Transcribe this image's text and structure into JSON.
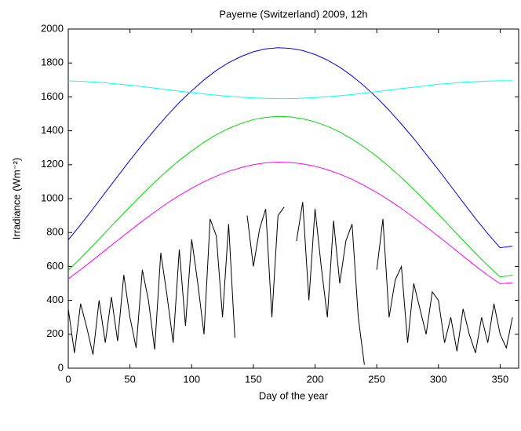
{
  "chart_data": {
    "type": "line",
    "title": "Payerne (Switzerland) 2009, 12h",
    "x_label": "Day of the year",
    "y_label": "Irradiance (Wm⁻²)",
    "xlim": [
      0,
      365
    ],
    "ylim": [
      0,
      2000
    ],
    "xticks": [
      0,
      50,
      100,
      150,
      200,
      250,
      300,
      350
    ],
    "yticks": [
      0,
      200,
      400,
      600,
      800,
      1000,
      1200,
      1400,
      1600,
      1800,
      2000
    ],
    "x": [
      0,
      10,
      20,
      30,
      40,
      50,
      60,
      70,
      80,
      90,
      100,
      110,
      120,
      130,
      140,
      150,
      160,
      170,
      180,
      190,
      200,
      210,
      220,
      230,
      240,
      250,
      260,
      270,
      280,
      290,
      300,
      310,
      320,
      330,
      340,
      350,
      360
    ],
    "series": [
      {
        "color": "#0000ff",
        "values": [
          757,
          846,
          940,
          1036,
          1131,
          1226,
          1318,
          1406,
          1489,
          1567,
          1636,
          1700,
          1756,
          1802,
          1838,
          1866,
          1883,
          1890,
          1886,
          1873,
          1850,
          1817,
          1775,
          1723,
          1663,
          1596,
          1521,
          1440,
          1354,
          1262,
          1170,
          1074,
          978,
          883,
          793,
          710,
          720
        ]
      },
      {
        "color": "#00ffff",
        "values": [
          1694,
          1692,
          1688,
          1683,
          1676,
          1669,
          1661,
          1652,
          1643,
          1634,
          1625,
          1617,
          1610,
          1603,
          1598,
          1594,
          1591,
          1590,
          1590,
          1592,
          1596,
          1601,
          1607,
          1614,
          1622,
          1631,
          1640,
          1649,
          1657,
          1666,
          1674,
          1680,
          1686,
          1690,
          1693,
          1695,
          1695
        ]
      },
      {
        "color": "#00dd00",
        "values": [
          577,
          648,
          724,
          800,
          877,
          952,
          1026,
          1097,
          1164,
          1226,
          1281,
          1333,
          1377,
          1414,
          1443,
          1466,
          1479,
          1485,
          1482,
          1471,
          1453,
          1427,
          1393,
          1351,
          1303,
          1249,
          1189,
          1124,
          1055,
          982,
          908,
          831,
          754,
          678,
          605,
          539,
          547
        ]
      },
      {
        "color": "#ff00ff",
        "values": [
          527,
          581,
          638,
          696,
          754,
          811,
          867,
          921,
          972,
          1019,
          1061,
          1100,
          1133,
          1161,
          1183,
          1200,
          1211,
          1215,
          1213,
          1205,
          1191,
          1171,
          1145,
          1114,
          1077,
          1036,
          991,
          942,
          889,
          834,
          778,
          720,
          661,
          603,
          548,
          498,
          504
        ]
      },
      {
        "color": "#000000",
        "x": [
          0,
          5,
          10,
          15,
          20,
          25,
          30,
          35,
          40,
          45,
          50,
          55,
          60,
          65,
          70,
          75,
          80,
          85,
          90,
          95,
          100,
          105,
          110,
          115,
          120,
          125,
          130,
          135,
          140,
          145,
          150,
          155,
          160,
          165,
          170,
          175,
          180,
          185,
          190,
          195,
          200,
          205,
          210,
          215,
          220,
          225,
          230,
          235,
          240,
          245,
          250,
          255,
          260,
          265,
          270,
          275,
          280,
          285,
          290,
          295,
          300,
          305,
          310,
          315,
          320,
          325,
          330,
          335,
          340,
          345,
          350,
          355,
          360
        ],
        "values": [
          350,
          90,
          380,
          240,
          80,
          400,
          150,
          420,
          160,
          550,
          300,
          120,
          580,
          400,
          110,
          680,
          430,
          150,
          700,
          250,
          760,
          500,
          200,
          880,
          780,
          300,
          850,
          180,
          null,
          900,
          600,
          820,
          940,
          300,
          900,
          950,
          null,
          750,
          980,
          400,
          940,
          600,
          300,
          870,
          500,
          750,
          850,
          300,
          20,
          null,
          580,
          880,
          300,
          520,
          600,
          150,
          500,
          350,
          200,
          450,
          400,
          150,
          300,
          100,
          350,
          200,
          90,
          300,
          150,
          380,
          200,
          120,
          300
        ]
      }
    ]
  }
}
